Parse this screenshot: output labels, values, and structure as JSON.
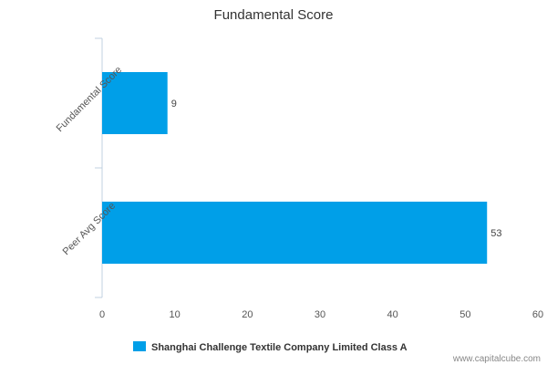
{
  "chart_data": {
    "type": "bar",
    "orientation": "horizontal",
    "title": "Fundamental Score",
    "categories": [
      "Fundamental Score",
      "Peer Avg Score"
    ],
    "series": [
      {
        "name": "Shanghai Challenge Textile Company Limited Class A",
        "values": [
          9,
          53
        ],
        "color": "#009fe8"
      }
    ],
    "xlim": [
      0,
      60
    ],
    "x_ticks": [
      0,
      10,
      20,
      30,
      40,
      50,
      60
    ],
    "grid": false,
    "legend_position": "bottom"
  },
  "footer": {
    "credit": "www.capitalcube.com"
  }
}
